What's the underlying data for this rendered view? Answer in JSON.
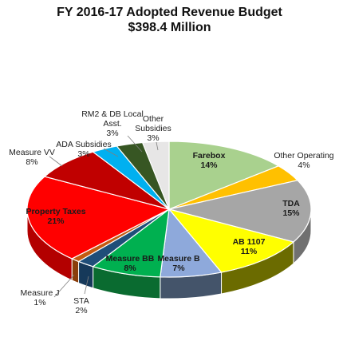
{
  "chart_data": {
    "type": "pie",
    "title": "FY 2016-17 Adopted Revenue Budget",
    "subtitle": "$398.4 Million",
    "slices": [
      {
        "name": "Farebox",
        "value": 14,
        "label": "14%",
        "color": "#a9d18e",
        "side": "#7f9f6a"
      },
      {
        "name": "Other Operating",
        "value": 4,
        "label": "4%",
        "color": "#ffc000",
        "side": "#c79700"
      },
      {
        "name": "TDA",
        "value": 15,
        "label": "15%",
        "color": "#a6a6a6",
        "side": "#707070"
      },
      {
        "name": "AB 1107",
        "value": 11,
        "label": "11%",
        "color": "#ffff00",
        "side": "#6b6b00"
      },
      {
        "name": "Measure B",
        "value": 7,
        "label": "7%",
        "color": "#8ea9db",
        "side": "#44546a"
      },
      {
        "name": "Measure BB",
        "value": 8,
        "label": "8%",
        "color": "#00b050",
        "side": "#0a6b30"
      },
      {
        "name": "STA",
        "value": 2,
        "label": "2%",
        "color": "#1f4e79",
        "side": "#16395a"
      },
      {
        "name": "Measure J",
        "value": 1,
        "label": "1%",
        "color": "#c55a11",
        "side": "#8b3e0b"
      },
      {
        "name": "Property Taxes",
        "value": 21,
        "label": "21%",
        "color": "#ff0000",
        "side": "#b30000"
      },
      {
        "name": "Measure VV",
        "value": 8,
        "label": "8%",
        "color": "#c00000",
        "side": "#8a0000"
      },
      {
        "name": "ADA Subsidies",
        "value": 3,
        "label": "3%",
        "color": "#00b0f0",
        "side": "#0080b0"
      },
      {
        "name": "RM2 & DB Local Asst.",
        "name_lines": [
          "RM2 & DB Local",
          "Asst."
        ],
        "value": 3,
        "label": "3%",
        "color": "#375623",
        "side": "#263c18"
      },
      {
        "name": "Other Subsidies",
        "name_lines": [
          "Other",
          "Subsidies"
        ],
        "value": 3,
        "label": "3%",
        "color": "#e7e6e6",
        "side": "#b8b8b8"
      }
    ]
  }
}
